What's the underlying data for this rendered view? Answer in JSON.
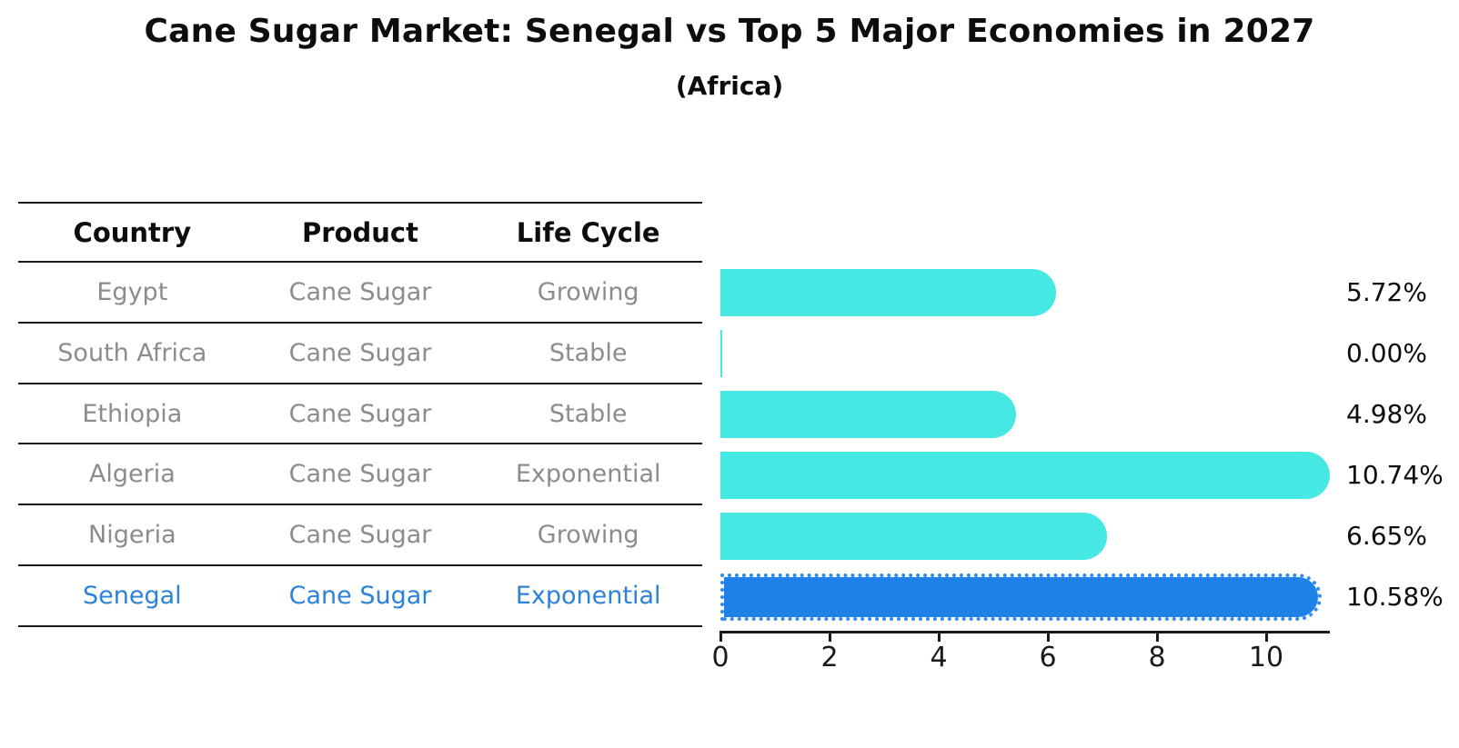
{
  "title": "Cane Sugar Market: Senegal vs Top 5 Major Economies in 2027",
  "subtitle": "(Africa)",
  "table": {
    "headers": [
      "Country",
      "Product",
      "Life Cycle"
    ],
    "rows": [
      {
        "country": "Egypt",
        "product": "Cane Sugar",
        "life_cycle": "Growing",
        "value": 5.72,
        "value_label": "5.72%",
        "highlight": false
      },
      {
        "country": "South Africa",
        "product": "Cane Sugar",
        "life_cycle": "Stable",
        "value": 0.0,
        "value_label": "0.00%",
        "highlight": false
      },
      {
        "country": "Ethiopia",
        "product": "Cane Sugar",
        "life_cycle": "Stable",
        "value": 4.98,
        "value_label": "4.98%",
        "highlight": false
      },
      {
        "country": "Algeria",
        "product": "Cane Sugar",
        "life_cycle": "Exponential",
        "value": 10.74,
        "value_label": "10.74%",
        "highlight": false
      },
      {
        "country": "Nigeria",
        "product": "Cane Sugar",
        "life_cycle": "Growing",
        "value": 6.65,
        "value_label": "6.65%",
        "highlight": false
      },
      {
        "country": "Senegal",
        "product": "Cane Sugar",
        "life_cycle": "Exponential",
        "value": 10.58,
        "value_label": "10.58%",
        "highlight": true
      }
    ]
  },
  "chart_data": {
    "type": "bar",
    "orientation": "horizontal",
    "title": "Cane Sugar Market: Senegal vs Top 5 Major Economies in 2027",
    "subtitle": "(Africa)",
    "categories": [
      "Egypt",
      "South Africa",
      "Ethiopia",
      "Algeria",
      "Nigeria",
      "Senegal"
    ],
    "values": [
      5.72,
      0.0,
      4.98,
      10.74,
      6.65,
      10.58
    ],
    "value_labels": [
      "5.72%",
      "0.00%",
      "4.98%",
      "10.74%",
      "6.65%",
      "10.58%"
    ],
    "xticks": [
      0,
      2,
      4,
      6,
      8,
      10
    ],
    "xlim": [
      0,
      11.2
    ],
    "grid": false,
    "legend": false,
    "bar_color": "#46E8E4",
    "highlight_bar_color": "#1E82E8",
    "highlight_category": "Senegal"
  },
  "colors": {
    "bar_cyan": "#46E8E4",
    "bar_blue": "#1E82E8",
    "row_text": "#8c8c8c",
    "highlight_text": "#2b82d9",
    "heading_text": "#0d0d0d",
    "line": "#1a1a1a"
  }
}
